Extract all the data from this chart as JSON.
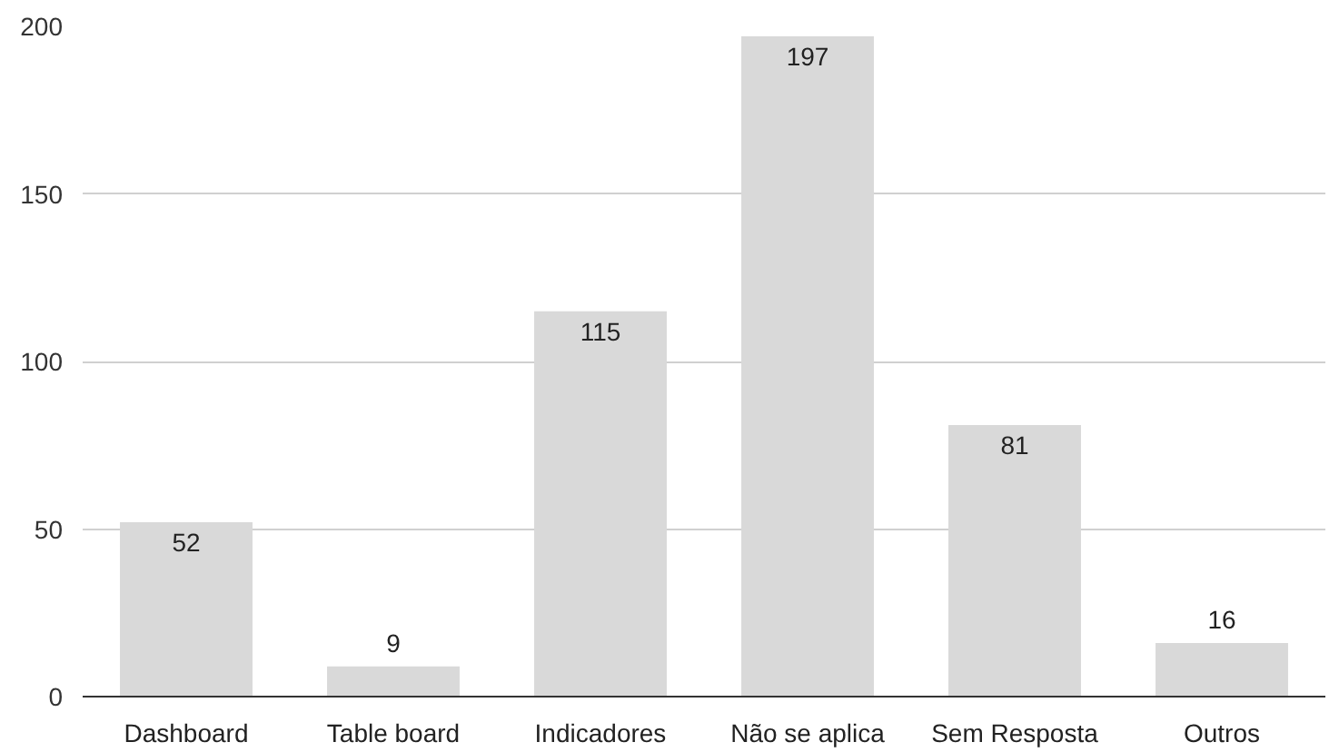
{
  "chart_data": {
    "type": "bar",
    "categories": [
      "Dashboard",
      "Table board",
      "Indicadores",
      "Não se aplica",
      "Sem Resposta",
      "Outros"
    ],
    "values": [
      52,
      9,
      115,
      197,
      81,
      16
    ],
    "color": "#d9d9d9",
    "ylim": [
      0,
      200
    ],
    "yticks": [
      0,
      50,
      100,
      150,
      200
    ],
    "grid": "y",
    "data_labels": true
  }
}
